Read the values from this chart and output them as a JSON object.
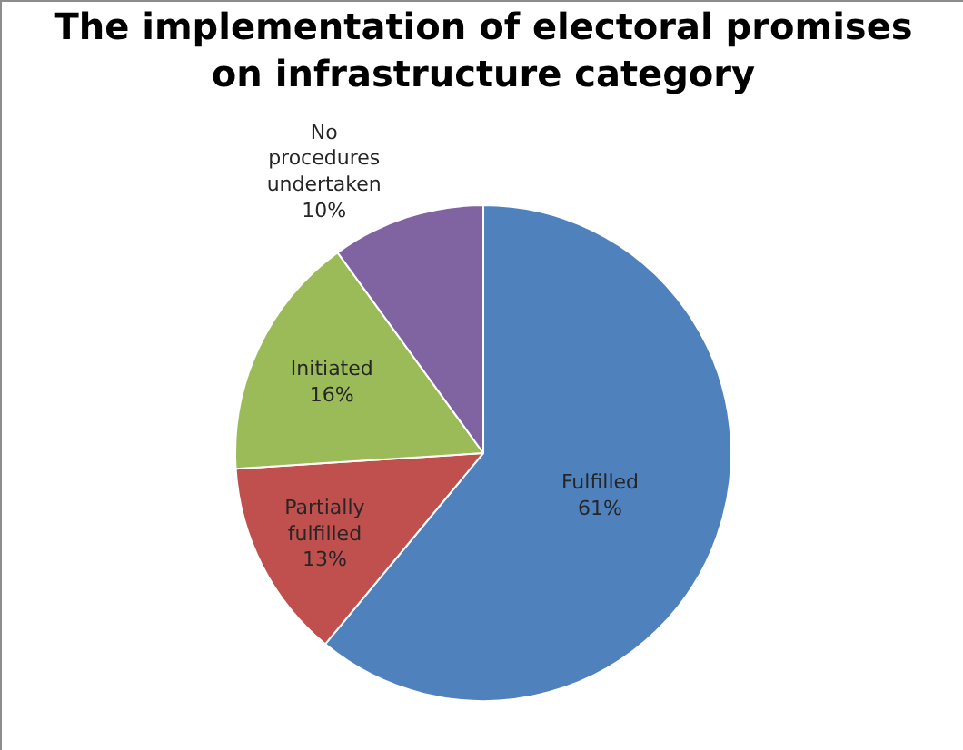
{
  "chart_data": {
    "type": "pie",
    "title": "The implementation of electoral promises on infrastructure category",
    "categories": [
      "Fulfilled",
      "Partially fulfilled",
      "Initiated",
      "No procedures undertaken"
    ],
    "values": [
      61,
      13,
      16,
      10
    ],
    "colors": [
      "#4f81bd",
      "#c0504d",
      "#9bbb59",
      "#8064a2"
    ],
    "value_labels": [
      "61%",
      "13%",
      "16%",
      "10%"
    ],
    "legend": false
  }
}
